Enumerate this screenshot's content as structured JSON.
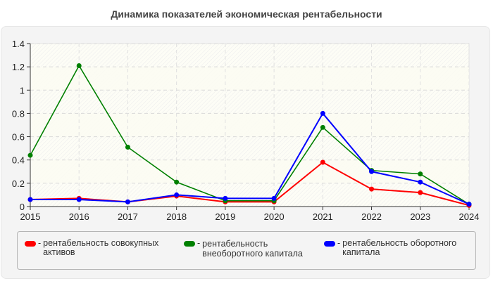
{
  "title": "Динамика показателей экономическая рентабельности",
  "legend": [
    {
      "label": "рентабельность совокупных активов",
      "color": "#ff0000"
    },
    {
      "label": "рентабельность внеоборотного капитала",
      "color": "#008000"
    },
    {
      "label": "рентабельность оборотного капитала",
      "color": "#0000ff"
    }
  ],
  "chart_data": {
    "type": "line",
    "title": "Динамика показателей экономическая рентабельности",
    "xlabel": "",
    "ylabel": "",
    "x": [
      "2015",
      "2016",
      "2017",
      "2018",
      "2019",
      "2020",
      "2021",
      "2022",
      "2023",
      "2024"
    ],
    "ylim": [
      0,
      1.4
    ],
    "yticks": [
      0,
      0.2,
      0.4,
      0.6,
      0.8,
      1,
      1.2,
      1.4
    ],
    "ytick_labels": [
      "0",
      "0.2",
      "0.4",
      "0.6",
      "0.8",
      "1",
      "1.2",
      "1.4"
    ],
    "grid": true,
    "legend_position": "bottom",
    "series": [
      {
        "name": "рентабельность совокупных активов",
        "color": "#ff0000",
        "values": [
          0.06,
          0.07,
          0.04,
          0.09,
          0.04,
          0.04,
          0.38,
          0.15,
          0.12,
          0.01
        ]
      },
      {
        "name": "рентабельность внеоборотного капитала",
        "color": "#008000",
        "values": [
          0.44,
          1.21,
          0.51,
          0.21,
          0.05,
          0.05,
          0.68,
          0.31,
          0.28,
          0.02
        ]
      },
      {
        "name": "рентабельность оборотного капитала",
        "color": "#0000ff",
        "values": [
          0.06,
          0.06,
          0.04,
          0.1,
          0.07,
          0.07,
          0.8,
          0.3,
          0.21,
          0.02
        ]
      }
    ]
  }
}
